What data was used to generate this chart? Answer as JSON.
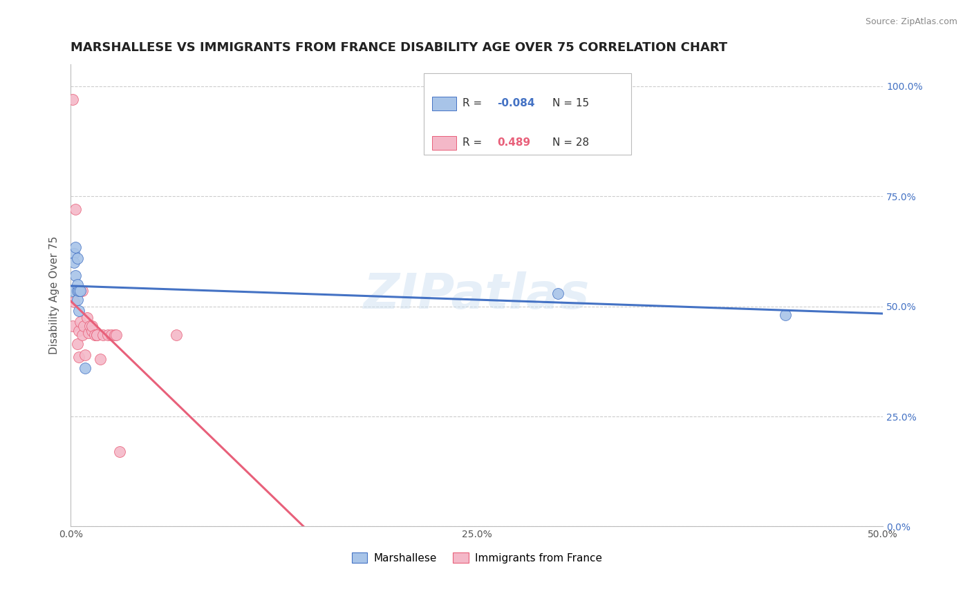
{
  "title": "MARSHALLESE VS IMMIGRANTS FROM FRANCE DISABILITY AGE OVER 75 CORRELATION CHART",
  "source": "Source: ZipAtlas.com",
  "ylabel": "Disability Age Over 75",
  "xlim": [
    0.0,
    0.5
  ],
  "ylim": [
    0.0,
    1.05
  ],
  "marshallese_x": [
    0.001,
    0.002,
    0.002,
    0.003,
    0.003,
    0.004,
    0.004,
    0.004,
    0.004,
    0.005,
    0.005,
    0.006,
    0.009,
    0.3,
    0.44
  ],
  "marshallese_y": [
    0.535,
    0.62,
    0.6,
    0.635,
    0.57,
    0.535,
    0.515,
    0.61,
    0.55,
    0.535,
    0.49,
    0.535,
    0.36,
    0.53,
    0.48
  ],
  "france_x": [
    0.001,
    0.001,
    0.002,
    0.003,
    0.004,
    0.005,
    0.005,
    0.006,
    0.007,
    0.007,
    0.008,
    0.009,
    0.01,
    0.011,
    0.012,
    0.013,
    0.013,
    0.015,
    0.016,
    0.016,
    0.018,
    0.02,
    0.023,
    0.025,
    0.027,
    0.028,
    0.03,
    0.065
  ],
  "france_y": [
    0.97,
    0.455,
    0.51,
    0.72,
    0.415,
    0.445,
    0.385,
    0.465,
    0.535,
    0.435,
    0.455,
    0.39,
    0.475,
    0.44,
    0.455,
    0.445,
    0.455,
    0.435,
    0.435,
    0.435,
    0.38,
    0.435,
    0.435,
    0.435,
    0.435,
    0.435,
    0.17,
    0.435
  ],
  "marshallese_color": "#a8c4e8",
  "france_color": "#f4b8c8",
  "marshallese_line_color": "#4472c4",
  "france_line_color": "#e8607a",
  "legend_R_marshallese": "-0.084",
  "legend_N_marshallese": "15",
  "legend_R_france": "0.489",
  "legend_N_france": "28",
  "watermark": "ZIPatlas",
  "background_color": "#ffffff",
  "grid_color": "#cccccc"
}
